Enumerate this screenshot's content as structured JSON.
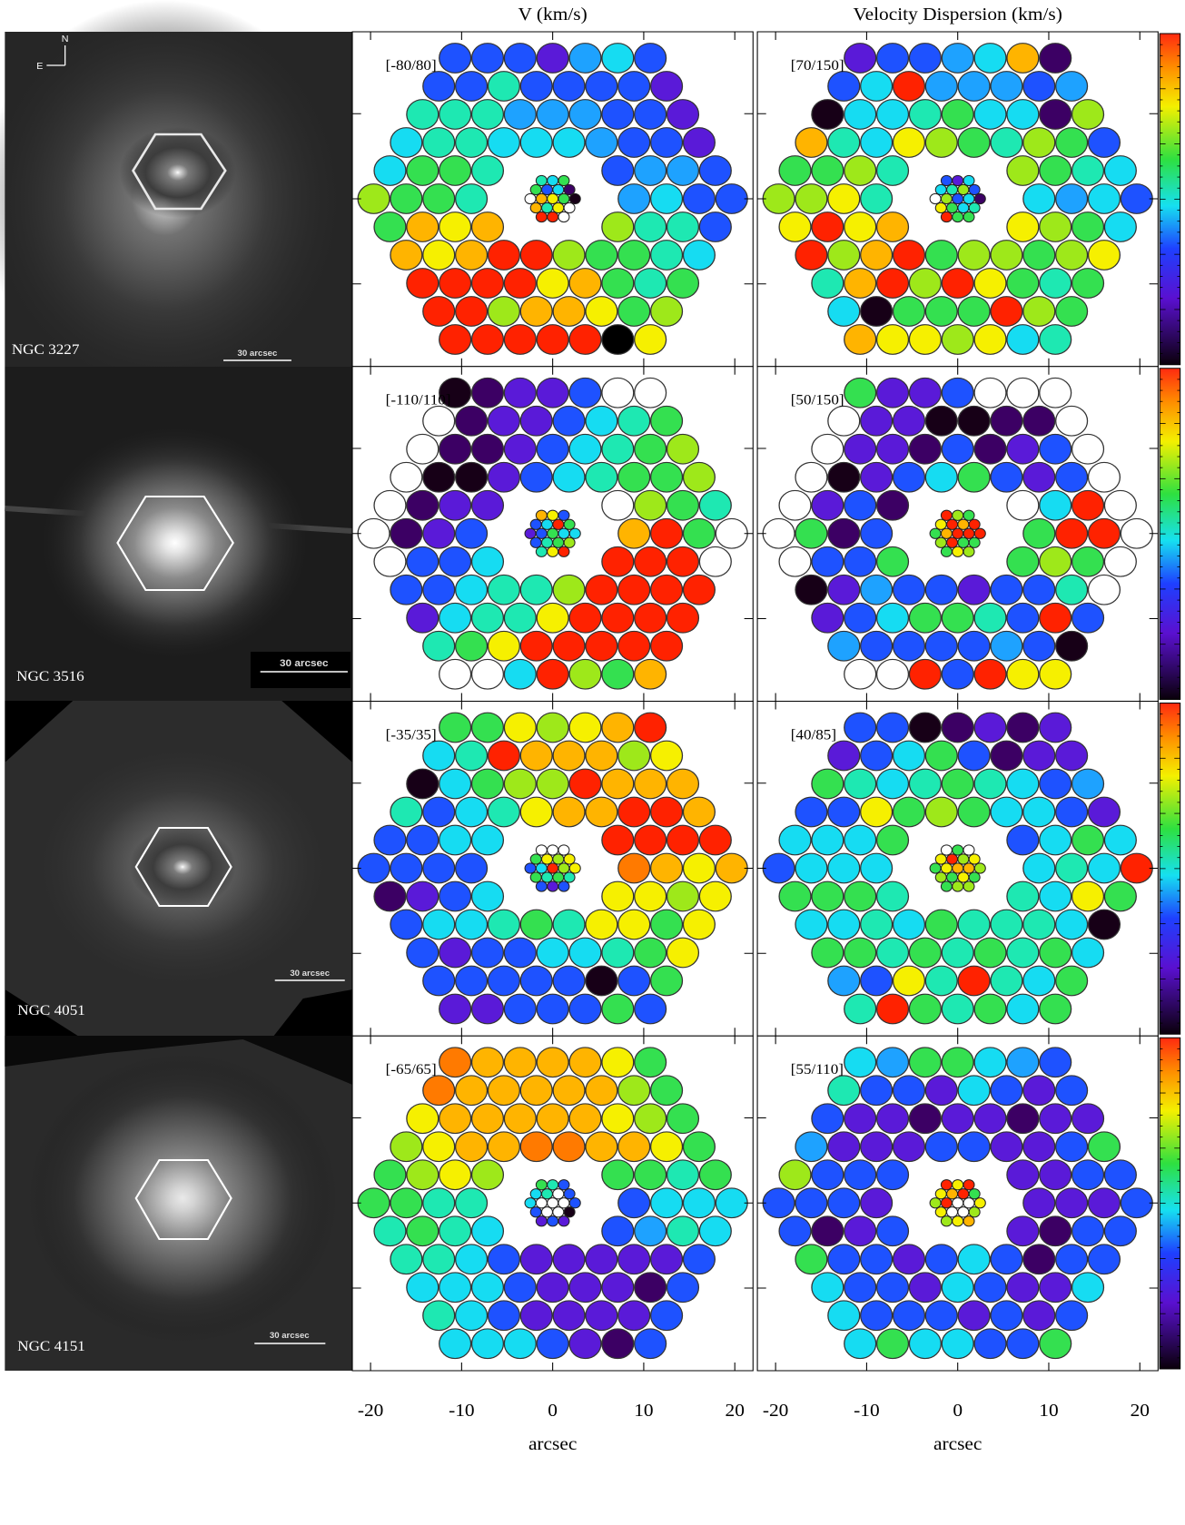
{
  "header": {
    "v_title": "V (km/s)",
    "sigma_title": "Velocity Dispersion (km/s)"
  },
  "compass": {
    "north": "N",
    "east": "E"
  },
  "axis": {
    "label": "arcsec",
    "xlim": [
      -22,
      22
    ],
    "xticks": [
      -20,
      -10,
      0,
      10,
      20
    ],
    "yticks": [
      -10,
      0,
      10
    ]
  },
  "palette": {
    "k": "#170017",
    "P": "#3c0064",
    "p": "#5a1ad8",
    "b": "#1e52ff",
    "B": "#1ea2ff",
    "c": "#16dcf2",
    "t": "#1ee8b2",
    "g": "#34e050",
    "l": "#9ee81a",
    "y": "#f6f000",
    "o": "#ffb400",
    "O": "#ff7a00",
    "r": "#ff2200",
    "w": "#ffffff"
  },
  "galaxies": [
    {
      "name": "NGC 3227",
      "scale_bar": "30 arcsec",
      "velocity": {
        "range": "[-80/80]",
        "fibers": [
          "bbbpBcb",
          "bbtbbbbp",
          "tttBBBbbp",
          "cttcccBbbp",
          "cggtbBBb",
          "lggtBcbb",
          "goyolttb",
          "oyorrlggtc",
          "rrrryogtg",
          "rrlooygl",
          "rrrrray"
        ],
        "core": [
          "tcg",
          "gbcP",
          "woygk",
          "otyw",
          "rrw"
        ]
      },
      "dispersion": {
        "range": "[70/150]",
        "fibers": [
          "pbbBcoP",
          "bcrBBBbB",
          "kcctgccPl",
          "otcylgtlgb",
          "ggltlgtc",
          "llytcBcb",
          "yryoylgc",
          "rlorgllgly",
          "torlrygtg",
          "ckgggrlg",
          "oyylyct"
        ],
        "core": [
          "bpc",
          "ctlb",
          "wlbcP",
          "ygct",
          "rgg"
        ]
      }
    },
    {
      "name": "NGC 3516",
      "scale_bar": "30 arcsec",
      "velocity": {
        "range": "[-110/110]",
        "fibers": [
          "kPppbww",
          "wPppbctg",
          "wPPpbctgl",
          "wkkpbctggl",
          "wPppwlgt",
          "wPpborgw",
          "wbbcrrrw",
          "bbcttlrrrr",
          "pcttyrrrr",
          "tgyrrrrr",
          "wwcrlgo"
        ],
        "core": [
          "oyb",
          "bcrg",
          "pbgcc",
          "btgl",
          "tyr"
        ]
      },
      "dispersion": {
        "range": "[50/150]",
        "fibers": [
          "gppbwww",
          "wppkkPPw",
          "wppPbPpbw",
          "wkpbcgbpbw",
          "wpbPwcrw",
          "wgPbgrrw",
          "wbbgglgw",
          "kpBbbpbbtw",
          "pbcggtbrb",
          "BbbbbBbk",
          "wwrbryy"
        ],
        "core": [
          "rlg",
          "yror",
          "gorrr",
          "lrgg",
          "gyl"
        ]
      }
    },
    {
      "name": "NGC 4051",
      "scale_bar": "30 arcsec",
      "velocity": {
        "range": "[-35/35]",
        "fibers": [
          "ggylyor",
          "ctroooly",
          "kcgllrooo",
          "tbctyoorro",
          "bbccrrrr",
          "bbbbOoyo",
          "Ppbcyyly",
          "bcctgtyygy",
          "bpbbcctgy",
          "bbbbbkbg",
          "ppbbbgb"
        ],
        "core": [
          "www",
          "gyly",
          "bcrly",
          "gtgt",
          "bpb"
        ]
      },
      "dispersion": {
        "range": "[40/85]",
        "fibers": [
          "bbkPpPp",
          "pbcgbPpp",
          "gtctgtcbB",
          "bbyglgccbp",
          "cccgbcgc",
          "bcccctcr",
          "gggttcyg",
          "cctcgtttck",
          "ggtgtgtgc",
          "Bbytrtcg",
          "trgtgcg"
        ],
        "core": [
          "wgw",
          "yrly",
          "gyool",
          "lgyg",
          "gll"
        ]
      }
    },
    {
      "name": "NGC 4151",
      "scale_bar": "30 arcsec",
      "velocity": {
        "range": "[-65/65]",
        "fibers": [
          "Oooooyg",
          "Oooooolg",
          "yoooooylg",
          "lyooOOooyg",
          "glylggtg",
          "ggttbccc",
          "tgtcbBtc",
          "ttcbpppppb",
          "cccbpppPb",
          "tcbppppb",
          "cccbpPb"
        ],
        "core": [
          "gtb",
          "ctwb",
          "cwwwb",
          "bwwk",
          "pbp"
        ]
      },
      "dispersion": {
        "range": "[55/110]",
        "fibers": [
          "cBggcBb",
          "tbbpcbpb",
          "bppPppPpp",
          "Bpppbbppbg",
          "lbbbppbb",
          "bbbppppb",
          "bPpbpPbb",
          "gbbpbcbPbb",
          "cbbpcbppc",
          "cbbbpbpb",
          "cgccbbg"
        ],
        "core": [
          "ryr",
          "yorg",
          "lrwwy",
          "ywwl",
          "lyo"
        ]
      }
    }
  ]
}
